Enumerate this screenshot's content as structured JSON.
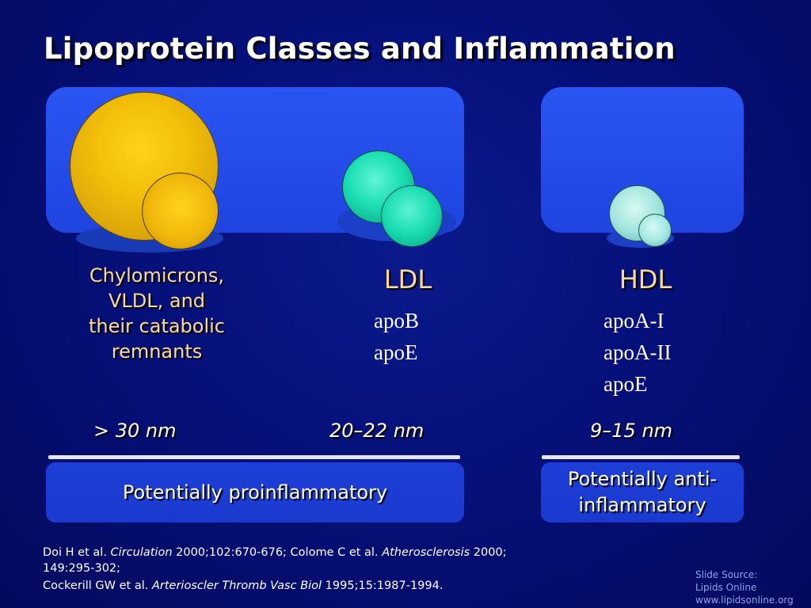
{
  "title": "Lipoprotein Classes and Inflammation",
  "classes": [
    {
      "name": "Chylomicrons, VLDL, and their catabolic remnants",
      "name_lines": [
        "Chylomicrons,",
        "VLDL, and",
        "their catabolic",
        "remnants"
      ],
      "apolipoproteins": [],
      "size": "> 30 nm",
      "particle_color": "#f2be0a"
    },
    {
      "name": "LDL",
      "apolipoproteins": [
        "apoB",
        "apoE"
      ],
      "size": "20–22 nm",
      "particle_color": "#1ddfb4"
    },
    {
      "name": "HDL",
      "apolipoproteins": [
        "apoA-I",
        "apoA-II",
        "apoE"
      ],
      "size": "9–15 nm",
      "particle_color": "#9fe3dc"
    }
  ],
  "effects": {
    "proinflammatory": "Potentially proinflammatory",
    "anti_line1": "Potentially anti-",
    "anti_line2": "inflammatory"
  },
  "references": {
    "line1_a": "Doi H et al. ",
    "line1_journal1": "Circulation",
    "line1_b": " 2000;102:670-676; Colome C et al. ",
    "line1_journal2": "Atherosclerosis",
    "line1_c": " 2000;",
    "line2": "149:295-302;",
    "line3_a": "Cockerill GW et al. ",
    "line3_journal": "Arterioscler Thromb Vasc Biol",
    "line3_b": " 1995;15:1987-1994."
  },
  "source": {
    "line1": "Slide Source:",
    "line2": "Lipids Online",
    "line3": "www.lipidsonline.org"
  },
  "colors": {
    "background": "#06107a",
    "panel": "#2a55f2",
    "label_gold": "#fcd89a"
  }
}
